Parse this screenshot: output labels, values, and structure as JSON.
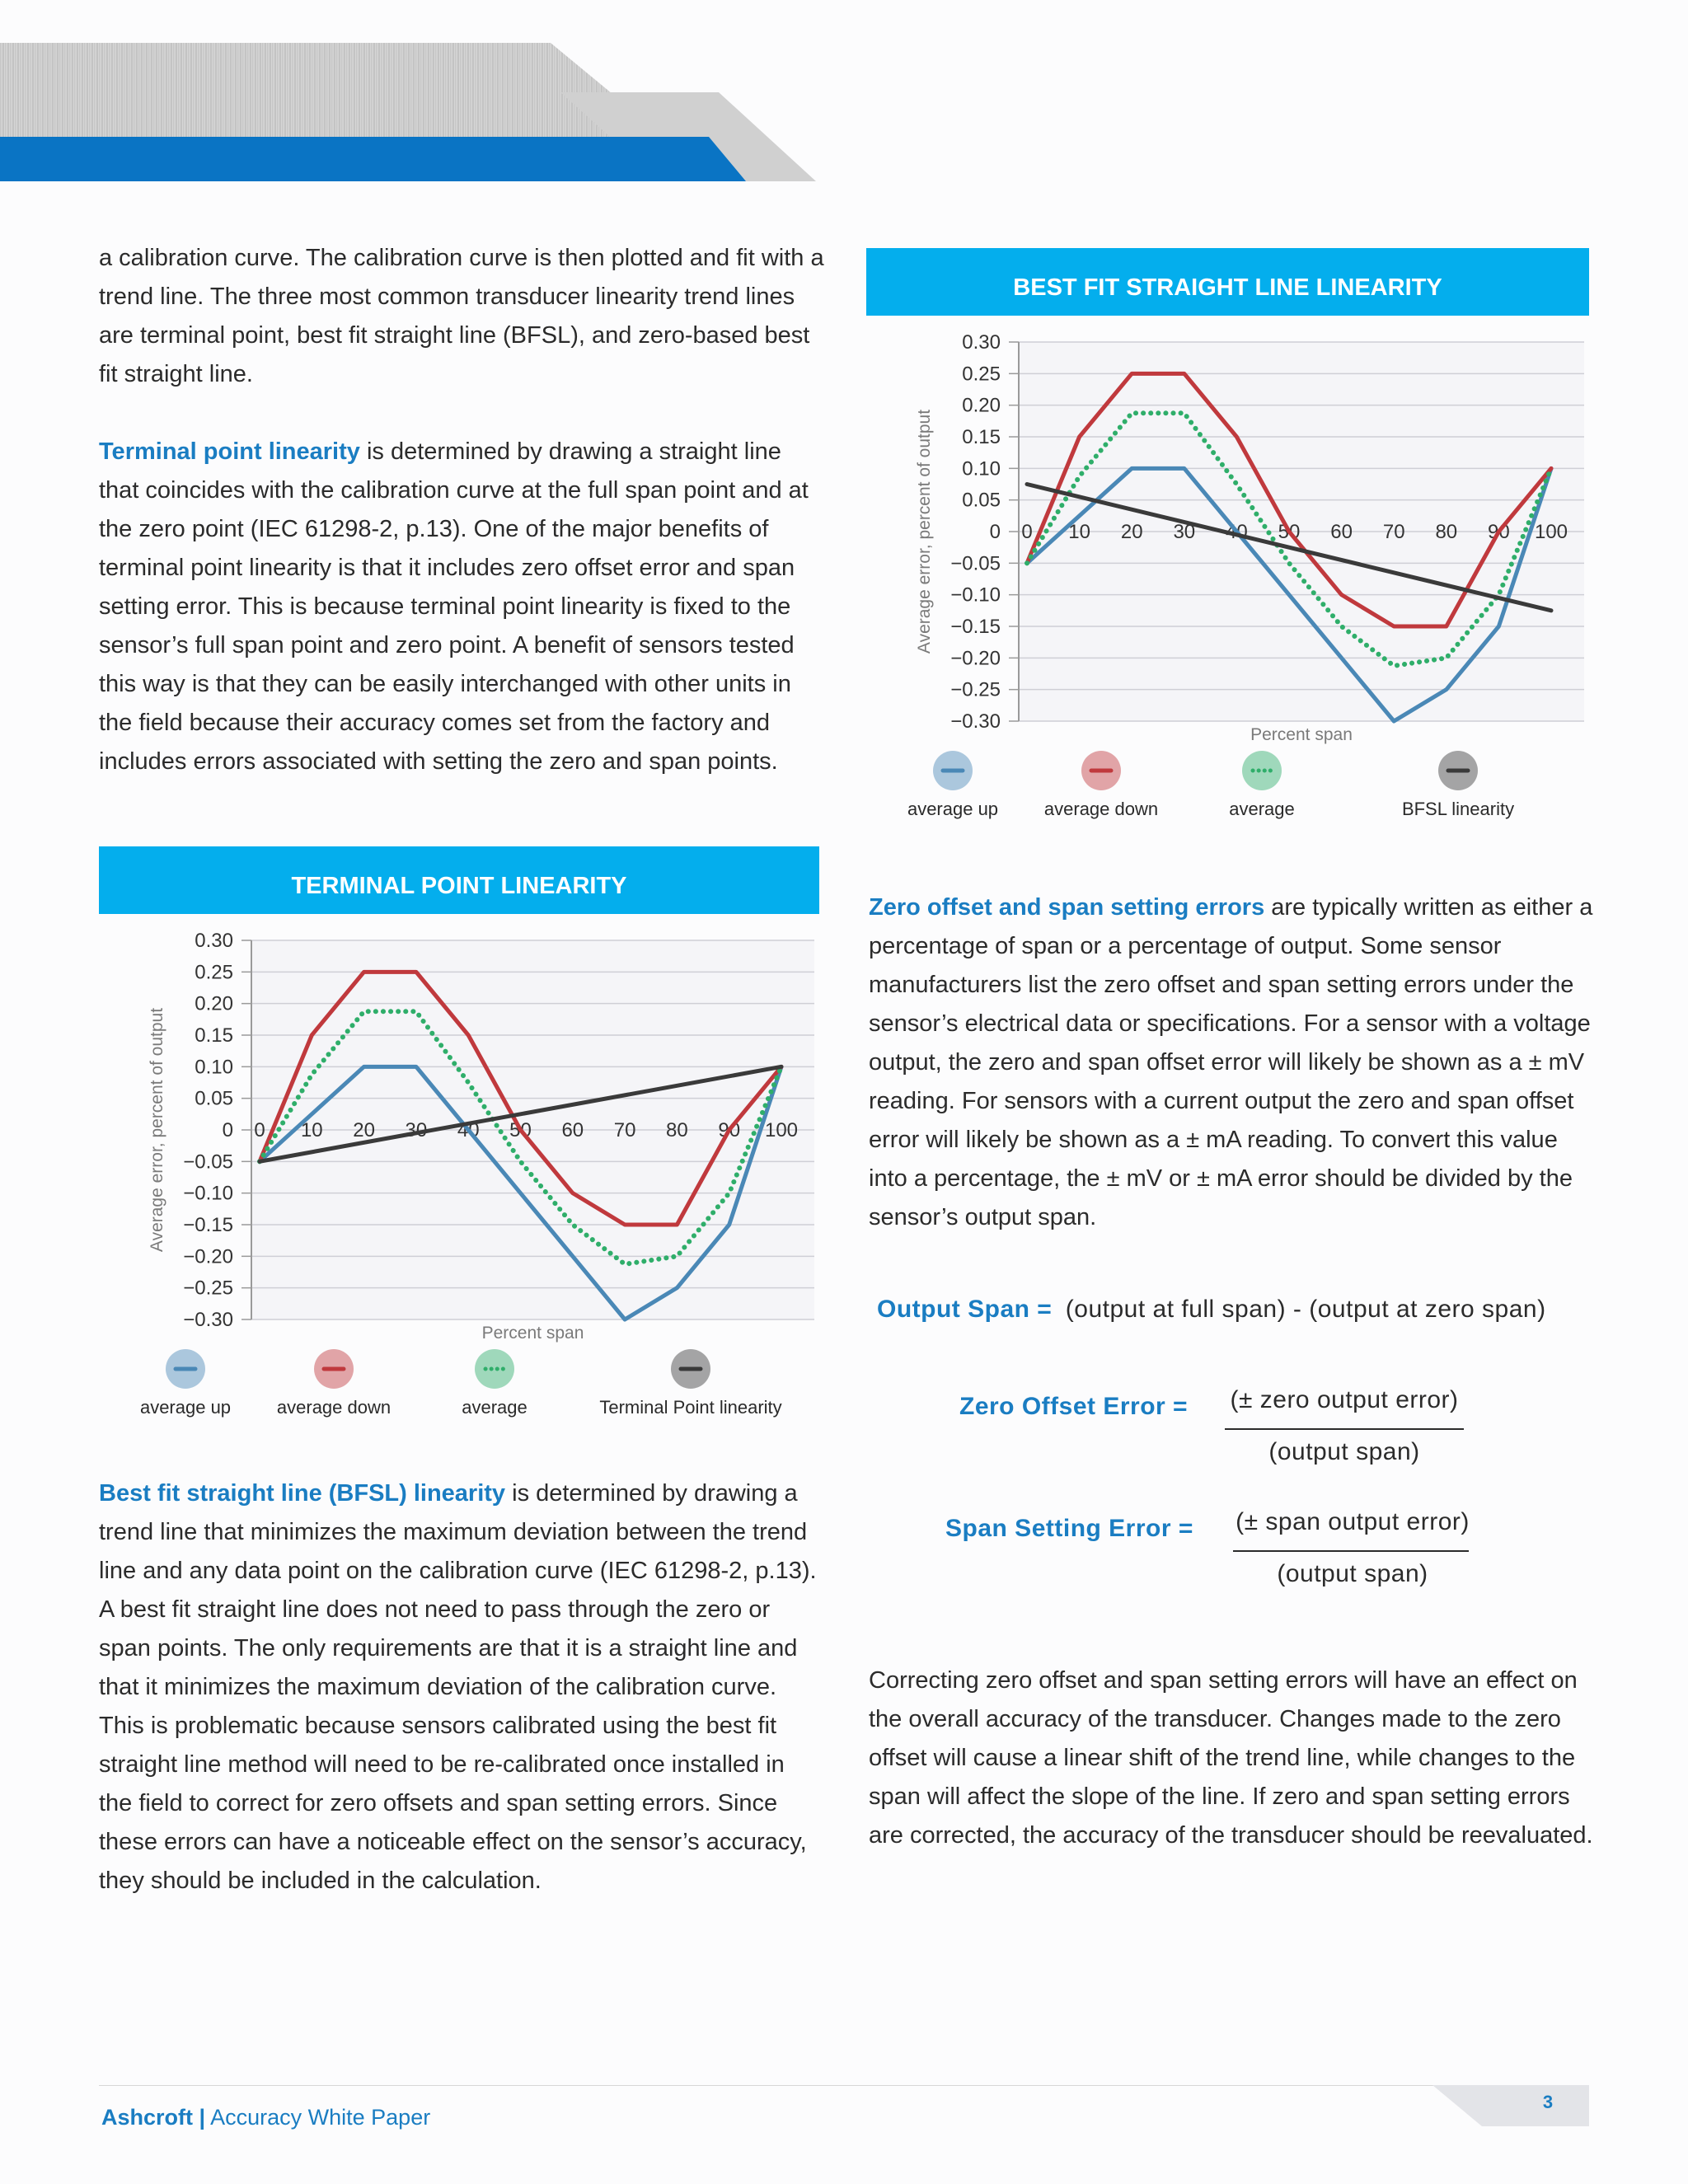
{
  "left_column": {
    "para1": "a calibration curve. The calibration curve is then plotted and fit with a trend line. The three most common transducer linearity trend lines are terminal point, best fit straight line (BFSL), and zero-based best fit straight line.",
    "para2_lead": "Terminal point linearity",
    "para2_rest": " is determined by drawing a straight line that coincides with the calibration curve at the full span point and at the zero point (IEC 61298-2, p.13). One of the major benefits of terminal point linearity is that it includes zero offset error and span setting error. This is because terminal point linearity is fixed to the sensor’s full span point and zero point. A benefit of sensors tested this way is that they can be easily interchanged with other units in the field because their accuracy comes set from the factory and includes errors associated with setting the zero and span points.",
    "para3_lead": "Best fit straight line (BFSL) linearity",
    "para3_rest": " is determined by drawing a trend line that minimizes the maximum deviation between the trend line and any data point on the calibration curve (IEC 61298-2, p.13). A best fit straight line does not need to pass through the zero or span points. The only requirements are that it is a straight line and that it minimizes the maximum deviation of the calibration curve. This is problematic because sensors calibrated using the best fit straight line method will need to be re-calibrated once installed in the field to correct for zero offsets and span setting errors. Since these errors can have a noticeable effect on the sensor’s accuracy, they should be included in the calculation."
  },
  "right_column": {
    "para1_lead": "Zero offset and span setting errors",
    "para1_rest": " are typically written as either a percentage of span or a percentage of output. Some sensor manufacturers list the zero offset and span setting errors under the sensor’s electrical data or specifications. For a sensor with a voltage output, the zero and span offset error will likely be shown as a ± mV reading. For sensors with a current output the zero and span offset error will likely be shown as a ± mA reading. To convert this value into a percentage, the ± mV or ± mA error should be divided by the sensor’s output span.",
    "para2": "Correcting zero offset and span setting errors will have an effect on the overall accuracy of the transducer. Changes made to the zero offset will cause a linear shift of the trend line, while changes to the span will affect the slope of the line. If zero and span setting errors are corrected, the accuracy of the transducer should be reevaluated."
  },
  "formulas": {
    "output_span_label": "Output Span =",
    "output_span_text": "(output at full span) - (output at zero span)",
    "zero_offset_label": "Zero Offset Error =",
    "zero_offset_num": "(± zero output error)",
    "zero_offset_den": "(output span)",
    "span_setting_label": "Span Setting Error =",
    "span_setting_num": "(± span output error)",
    "span_setting_den": "(output span)"
  },
  "footer": {
    "brand": "Ashcroft",
    "separator": "|",
    "doc_title": "Accuracy White Paper",
    "page_number": "3"
  },
  "colors": {
    "accent": "#04aeed",
    "brand_blue": "#1a7dc2",
    "banner_blue": "#0a74c4",
    "avg_up": "#4a88b6",
    "avg_down": "#c0393d",
    "average": "#2fae6a",
    "trend": "#3a3a3a"
  },
  "chart_data": [
    {
      "id": "terminal",
      "type": "line",
      "title": "TERMINAL POINT LINEARITY",
      "xlabel": "Percent span",
      "ylabel": "Average error, percent of output",
      "x_ticks": [
        "0",
        "10",
        "20",
        "30",
        "40",
        "50",
        "60",
        "70",
        "80",
        "90",
        "100"
      ],
      "y_ticks": [
        "0.30",
        "0.25",
        "0.20",
        "0.15",
        "0.10",
        "0.05",
        "0",
        "-0.05",
        "-0.10",
        "-0.15",
        "-0.20",
        "-0.25",
        "-0.30"
      ],
      "ylim": [
        -0.3,
        0.3
      ],
      "xlim": [
        0,
        100
      ],
      "legend_position": "bottom",
      "series": [
        {
          "name": "average up",
          "style": "solid",
          "x": [
            0,
            10,
            20,
            30,
            40,
            50,
            60,
            70,
            80,
            90,
            100
          ],
          "y": [
            -0.05,
            0.025,
            0.1,
            0.1,
            0,
            -0.1,
            -0.2,
            -0.3,
            -0.25,
            -0.15,
            0.1
          ]
        },
        {
          "name": "average down",
          "style": "solid",
          "x": [
            0,
            10,
            20,
            30,
            40,
            50,
            60,
            70,
            80,
            90,
            100
          ],
          "y": [
            -0.05,
            0.15,
            0.25,
            0.25,
            0.15,
            0,
            -0.1,
            -0.15,
            -0.15,
            0,
            0.1
          ]
        },
        {
          "name": "average",
          "style": "dotted",
          "x": [
            0,
            10,
            20,
            30,
            40,
            50,
            60,
            70,
            80,
            90,
            100
          ],
          "y": [
            -0.05,
            0.0875,
            0.1875,
            0.1875,
            0.075,
            -0.05,
            -0.15,
            -0.2125,
            -0.2,
            -0.1,
            0.1
          ]
        },
        {
          "name": "Terminal Point linearity",
          "style": "solid",
          "x": [
            0,
            100
          ],
          "y": [
            -0.05,
            0.1
          ]
        }
      ]
    },
    {
      "id": "bfsl",
      "type": "line",
      "title": "BEST FIT STRAIGHT LINE LINEARITY",
      "xlabel": "Percent span",
      "ylabel": "Average error, percent of output",
      "x_ticks": [
        "0",
        "10",
        "20",
        "30",
        "40",
        "50",
        "60",
        "70",
        "80",
        "90",
        "100"
      ],
      "y_ticks": [
        "0.30",
        "0.25",
        "0.20",
        "0.15",
        "0.10",
        "0.05",
        "0",
        "-0.05",
        "-0.10",
        "-0.15",
        "-0.20",
        "-0.25",
        "-0.30"
      ],
      "ylim": [
        -0.3,
        0.3
      ],
      "xlim": [
        0,
        100
      ],
      "legend_position": "bottom",
      "series": [
        {
          "name": "average up",
          "style": "solid",
          "x": [
            0,
            10,
            20,
            30,
            40,
            50,
            60,
            70,
            80,
            90,
            100
          ],
          "y": [
            -0.05,
            0.025,
            0.1,
            0.1,
            0,
            -0.1,
            -0.2,
            -0.3,
            -0.25,
            -0.15,
            0.1
          ]
        },
        {
          "name": "average down",
          "style": "solid",
          "x": [
            0,
            10,
            20,
            30,
            40,
            50,
            60,
            70,
            80,
            90,
            100
          ],
          "y": [
            -0.05,
            0.15,
            0.25,
            0.25,
            0.15,
            0,
            -0.1,
            -0.15,
            -0.15,
            0,
            0.1
          ]
        },
        {
          "name": "average",
          "style": "dotted",
          "x": [
            0,
            10,
            20,
            30,
            40,
            50,
            60,
            70,
            80,
            90,
            100
          ],
          "y": [
            -0.05,
            0.0875,
            0.1875,
            0.1875,
            0.075,
            -0.05,
            -0.15,
            -0.2125,
            -0.2,
            -0.1,
            0.1
          ]
        },
        {
          "name": "BFSL linearity",
          "style": "solid",
          "x": [
            0,
            100
          ],
          "y": [
            0.075,
            -0.125
          ]
        }
      ]
    }
  ]
}
